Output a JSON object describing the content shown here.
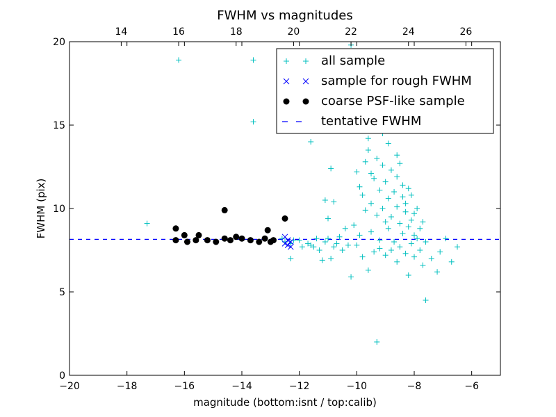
{
  "chart_data": {
    "type": "scatter",
    "title": "FWHM vs magnitudes",
    "xlabel": "magnitude (bottom:isnt / top:calib)",
    "ylabel": "FWHM (pix)",
    "xlim": [
      -20,
      -5
    ],
    "ylim": [
      0,
      20
    ],
    "x_ticks": [
      -20,
      -18,
      -16,
      -14,
      -12,
      -10,
      -8,
      -6
    ],
    "y_ticks": [
      0,
      5,
      10,
      15,
      20
    ],
    "x_tick_labels": [
      "−20",
      "−18",
      "−16",
      "−14",
      "−12",
      "−10",
      "−8",
      "−6"
    ],
    "y_tick_labels": [
      "0",
      "5",
      "10",
      "15",
      "20"
    ],
    "top_axis": {
      "offset": 32.2,
      "ticks": [
        14,
        16,
        18,
        20,
        22,
        24,
        26
      ],
      "tick_labels": [
        "14",
        "16",
        "18",
        "20",
        "22",
        "24",
        "26"
      ]
    },
    "legend_position": "top-right",
    "grid": false,
    "series": [
      {
        "name": "all sample",
        "marker": "plus",
        "color": "#00bfbf",
        "points": [
          [
            -17.3,
            9.1
          ],
          [
            -16.2,
            18.9
          ],
          [
            -13.6,
            18.9
          ],
          [
            -13.6,
            15.2
          ],
          [
            -12.9,
            8.1
          ],
          [
            -12.6,
            8.2
          ],
          [
            -12.5,
            8.0
          ],
          [
            -12.3,
            7.9
          ],
          [
            -12.2,
            8.1
          ],
          [
            -12.3,
            7.0
          ],
          [
            -12.0,
            8.1
          ],
          [
            -11.9,
            7.7
          ],
          [
            -11.7,
            7.9
          ],
          [
            -11.6,
            7.8
          ],
          [
            -11.6,
            14.0
          ],
          [
            -11.5,
            7.7
          ],
          [
            -11.4,
            8.2
          ],
          [
            -11.3,
            7.5
          ],
          [
            -11.2,
            6.9
          ],
          [
            -11.1,
            8.0
          ],
          [
            -11.1,
            10.5
          ],
          [
            -11.0,
            8.2
          ],
          [
            -11.0,
            9.4
          ],
          [
            -10.9,
            7.0
          ],
          [
            -10.9,
            12.4
          ],
          [
            -10.8,
            7.7
          ],
          [
            -10.8,
            10.4
          ],
          [
            -10.7,
            7.9
          ],
          [
            -10.6,
            8.3
          ],
          [
            -10.5,
            7.5
          ],
          [
            -10.4,
            8.8
          ],
          [
            -10.3,
            7.8
          ],
          [
            -10.2,
            5.9
          ],
          [
            -10.2,
            19.8
          ],
          [
            -10.1,
            9.0
          ],
          [
            -10.0,
            7.8
          ],
          [
            -10.0,
            12.2
          ],
          [
            -9.9,
            11.3
          ],
          [
            -9.9,
            8.4
          ],
          [
            -9.8,
            7.1
          ],
          [
            -9.8,
            10.8
          ],
          [
            -9.7,
            12.8
          ],
          [
            -9.7,
            9.9
          ],
          [
            -9.6,
            14.2
          ],
          [
            -9.6,
            13.5
          ],
          [
            -9.6,
            6.3
          ],
          [
            -9.5,
            10.3
          ],
          [
            -9.5,
            12.1
          ],
          [
            -9.5,
            8.6
          ],
          [
            -9.4,
            11.8
          ],
          [
            -9.4,
            7.4
          ],
          [
            -9.3,
            2.0
          ],
          [
            -9.3,
            9.6
          ],
          [
            -9.3,
            13.0
          ],
          [
            -9.2,
            8.1
          ],
          [
            -9.2,
            11.1
          ],
          [
            -9.2,
            7.6
          ],
          [
            -9.1,
            14.5
          ],
          [
            -9.1,
            10.0
          ],
          [
            -9.1,
            12.6
          ],
          [
            -9.0,
            7.2
          ],
          [
            -9.0,
            9.2
          ],
          [
            -9.0,
            11.6
          ],
          [
            -8.9,
            13.9
          ],
          [
            -8.9,
            8.8
          ],
          [
            -8.9,
            10.6
          ],
          [
            -8.8,
            7.5
          ],
          [
            -8.8,
            12.3
          ],
          [
            -8.8,
            9.5
          ],
          [
            -8.7,
            14.8
          ],
          [
            -8.7,
            11.0
          ],
          [
            -8.7,
            8.0
          ],
          [
            -8.6,
            13.2
          ],
          [
            -8.6,
            10.1
          ],
          [
            -8.6,
            6.8
          ],
          [
            -8.6,
            11.9
          ],
          [
            -8.5,
            9.1
          ],
          [
            -8.5,
            12.7
          ],
          [
            -8.5,
            7.7
          ],
          [
            -8.4,
            10.7
          ],
          [
            -8.4,
            8.5
          ],
          [
            -8.4,
            11.4
          ],
          [
            -8.3,
            9.8
          ],
          [
            -8.3,
            7.3
          ],
          [
            -8.3,
            10.3
          ],
          [
            -8.2,
            8.9
          ],
          [
            -8.2,
            6.0
          ],
          [
            -8.2,
            11.2
          ],
          [
            -8.1,
            9.3
          ],
          [
            -8.1,
            7.9
          ],
          [
            -8.1,
            10.8
          ],
          [
            -8.0,
            8.4
          ],
          [
            -8.0,
            7.1
          ],
          [
            -8.0,
            9.7
          ],
          [
            -7.9,
            8.2
          ],
          [
            -7.9,
            10.0
          ],
          [
            -7.8,
            7.5
          ],
          [
            -7.8,
            8.8
          ],
          [
            -7.7,
            6.6
          ],
          [
            -7.7,
            9.2
          ],
          [
            -7.6,
            4.5
          ],
          [
            -7.6,
            8.0
          ],
          [
            -7.4,
            7.0
          ],
          [
            -7.2,
            6.2
          ],
          [
            -7.1,
            7.4
          ],
          [
            -6.9,
            8.2
          ],
          [
            -6.7,
            6.8
          ],
          [
            -6.5,
            7.7
          ]
        ]
      },
      {
        "name": "sample for rough FWHM",
        "marker": "x",
        "color": "#0000ff",
        "points": [
          [
            -12.5,
            8.3
          ],
          [
            -12.5,
            7.9
          ],
          [
            -12.4,
            8.1
          ],
          [
            -12.4,
            7.8
          ],
          [
            -12.3,
            8.0
          ],
          [
            -12.3,
            7.7
          ]
        ]
      },
      {
        "name": "coarse PSF-like sample",
        "marker": "circle",
        "color": "#000000",
        "points": [
          [
            -16.3,
            8.8
          ],
          [
            -16.3,
            8.1
          ],
          [
            -16.0,
            8.4
          ],
          [
            -15.9,
            8.0
          ],
          [
            -15.6,
            8.1
          ],
          [
            -15.5,
            8.4
          ],
          [
            -15.2,
            8.1
          ],
          [
            -14.9,
            8.0
          ],
          [
            -14.6,
            8.2
          ],
          [
            -14.6,
            9.9
          ],
          [
            -14.4,
            8.1
          ],
          [
            -14.2,
            8.3
          ],
          [
            -14.0,
            8.2
          ],
          [
            -13.7,
            8.1
          ],
          [
            -13.4,
            8.0
          ],
          [
            -13.2,
            8.2
          ],
          [
            -13.1,
            8.7
          ],
          [
            -13.0,
            8.0
          ],
          [
            -12.9,
            8.1
          ],
          [
            -12.5,
            9.4
          ]
        ]
      },
      {
        "name": "tentative FWHM",
        "marker": "dashed-line",
        "color": "#0000ff",
        "value": 8.15
      }
    ]
  }
}
